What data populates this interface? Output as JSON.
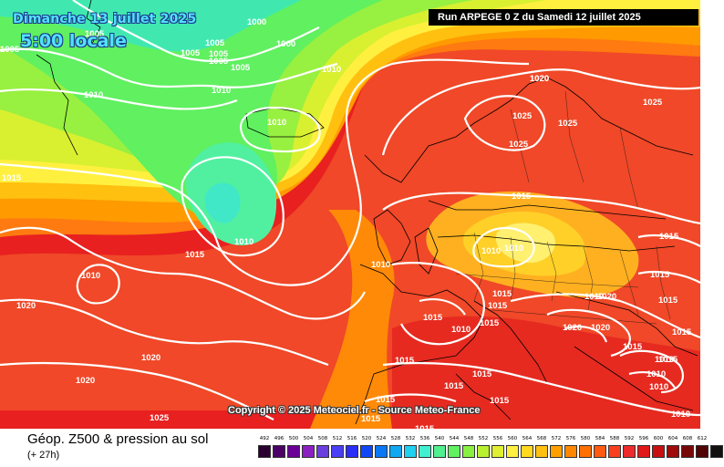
{
  "header": {
    "date": "Dimanche 13 juillet 2025",
    "time": "5:00 locale",
    "run": "Run ARPEGE 0 Z du Samedi 12 juillet 2025"
  },
  "copyright": "Copyright © 2025 Meteociel.fr - Source Meteo-France",
  "legend": {
    "title": "Géop. Z500 & pression au sol",
    "subtitle": "(+ 27h)",
    "scale": [
      {
        "value": "492",
        "color": "#2a0030"
      },
      {
        "value": "496",
        "color": "#4b0066"
      },
      {
        "value": "500",
        "color": "#6a0096"
      },
      {
        "value": "504",
        "color": "#8a1fc4"
      },
      {
        "value": "508",
        "color": "#6b3ee0"
      },
      {
        "value": "512",
        "color": "#4a3ff2"
      },
      {
        "value": "516",
        "color": "#2a2ef6"
      },
      {
        "value": "520",
        "color": "#1048f6"
      },
      {
        "value": "524",
        "color": "#0a78f4"
      },
      {
        "value": "528",
        "color": "#10a8f0"
      },
      {
        "value": "532",
        "color": "#20d0f0"
      },
      {
        "value": "536",
        "color": "#40f0d0"
      },
      {
        "value": "540",
        "color": "#50f090"
      },
      {
        "value": "544",
        "color": "#60f060"
      },
      {
        "value": "548",
        "color": "#88f040"
      },
      {
        "value": "552",
        "color": "#b8f030"
      },
      {
        "value": "556",
        "color": "#e0f030"
      },
      {
        "value": "560",
        "color": "#fff040"
      },
      {
        "value": "564",
        "color": "#ffd820"
      },
      {
        "value": "568",
        "color": "#ffc010"
      },
      {
        "value": "572",
        "color": "#ffa000"
      },
      {
        "value": "576",
        "color": "#ff8800"
      },
      {
        "value": "580",
        "color": "#ff7000"
      },
      {
        "value": "584",
        "color": "#ff5a10"
      },
      {
        "value": "588",
        "color": "#f84020"
      },
      {
        "value": "592",
        "color": "#ee2a2a"
      },
      {
        "value": "596",
        "color": "#e01818"
      },
      {
        "value": "600",
        "color": "#c81010"
      },
      {
        "value": "604",
        "color": "#a00a0a"
      },
      {
        "value": "608",
        "color": "#780808"
      },
      {
        "value": "612",
        "color": "#500404"
      },
      {
        "value": "",
        "color": "#111111"
      }
    ]
  },
  "isobar_labels": {
    "l1": "1005",
    "l2": "1000",
    "l3": "1005",
    "l4": "1005",
    "l5": "1000",
    "l6": "1005",
    "l7": "1005",
    "l8": "1005",
    "l9": "1005",
    "l10": "1010",
    "l11": "1010",
    "l12": "1010",
    "l13": "1010",
    "l14": "1015",
    "l15": "1010",
    "l16": "1015",
    "l17": "1010",
    "l18": "1020",
    "l19": "1010",
    "l20": "1020",
    "l21": "1020",
    "l22": "1025",
    "l23": "1025",
    "l24": "1025",
    "l25": "1025",
    "l26": "1020",
    "l27": "1015",
    "l28": "1010",
    "l29": "1010",
    "l30": "1015",
    "l31": "1015",
    "l32": "1015",
    "l33": "1010",
    "l34": "1015",
    "l35": "1015",
    "l36": "1015",
    "l37": "1015",
    "l38": "1015",
    "l39": "1015",
    "l40": "1015",
    "l41": "1010",
    "l42": "1010",
    "l43": "1020",
    "l44": "1020",
    "l45": "1020",
    "l46": "1015",
    "l47": "1015",
    "l48": "1015",
    "l49": "1010",
    "l50": "1010",
    "l51": "1010",
    "l52": "1015",
    "l53": "1015",
    "l54": "1015",
    "l55": "1015",
    "l56": "1025",
    "l57": "1020"
  }
}
